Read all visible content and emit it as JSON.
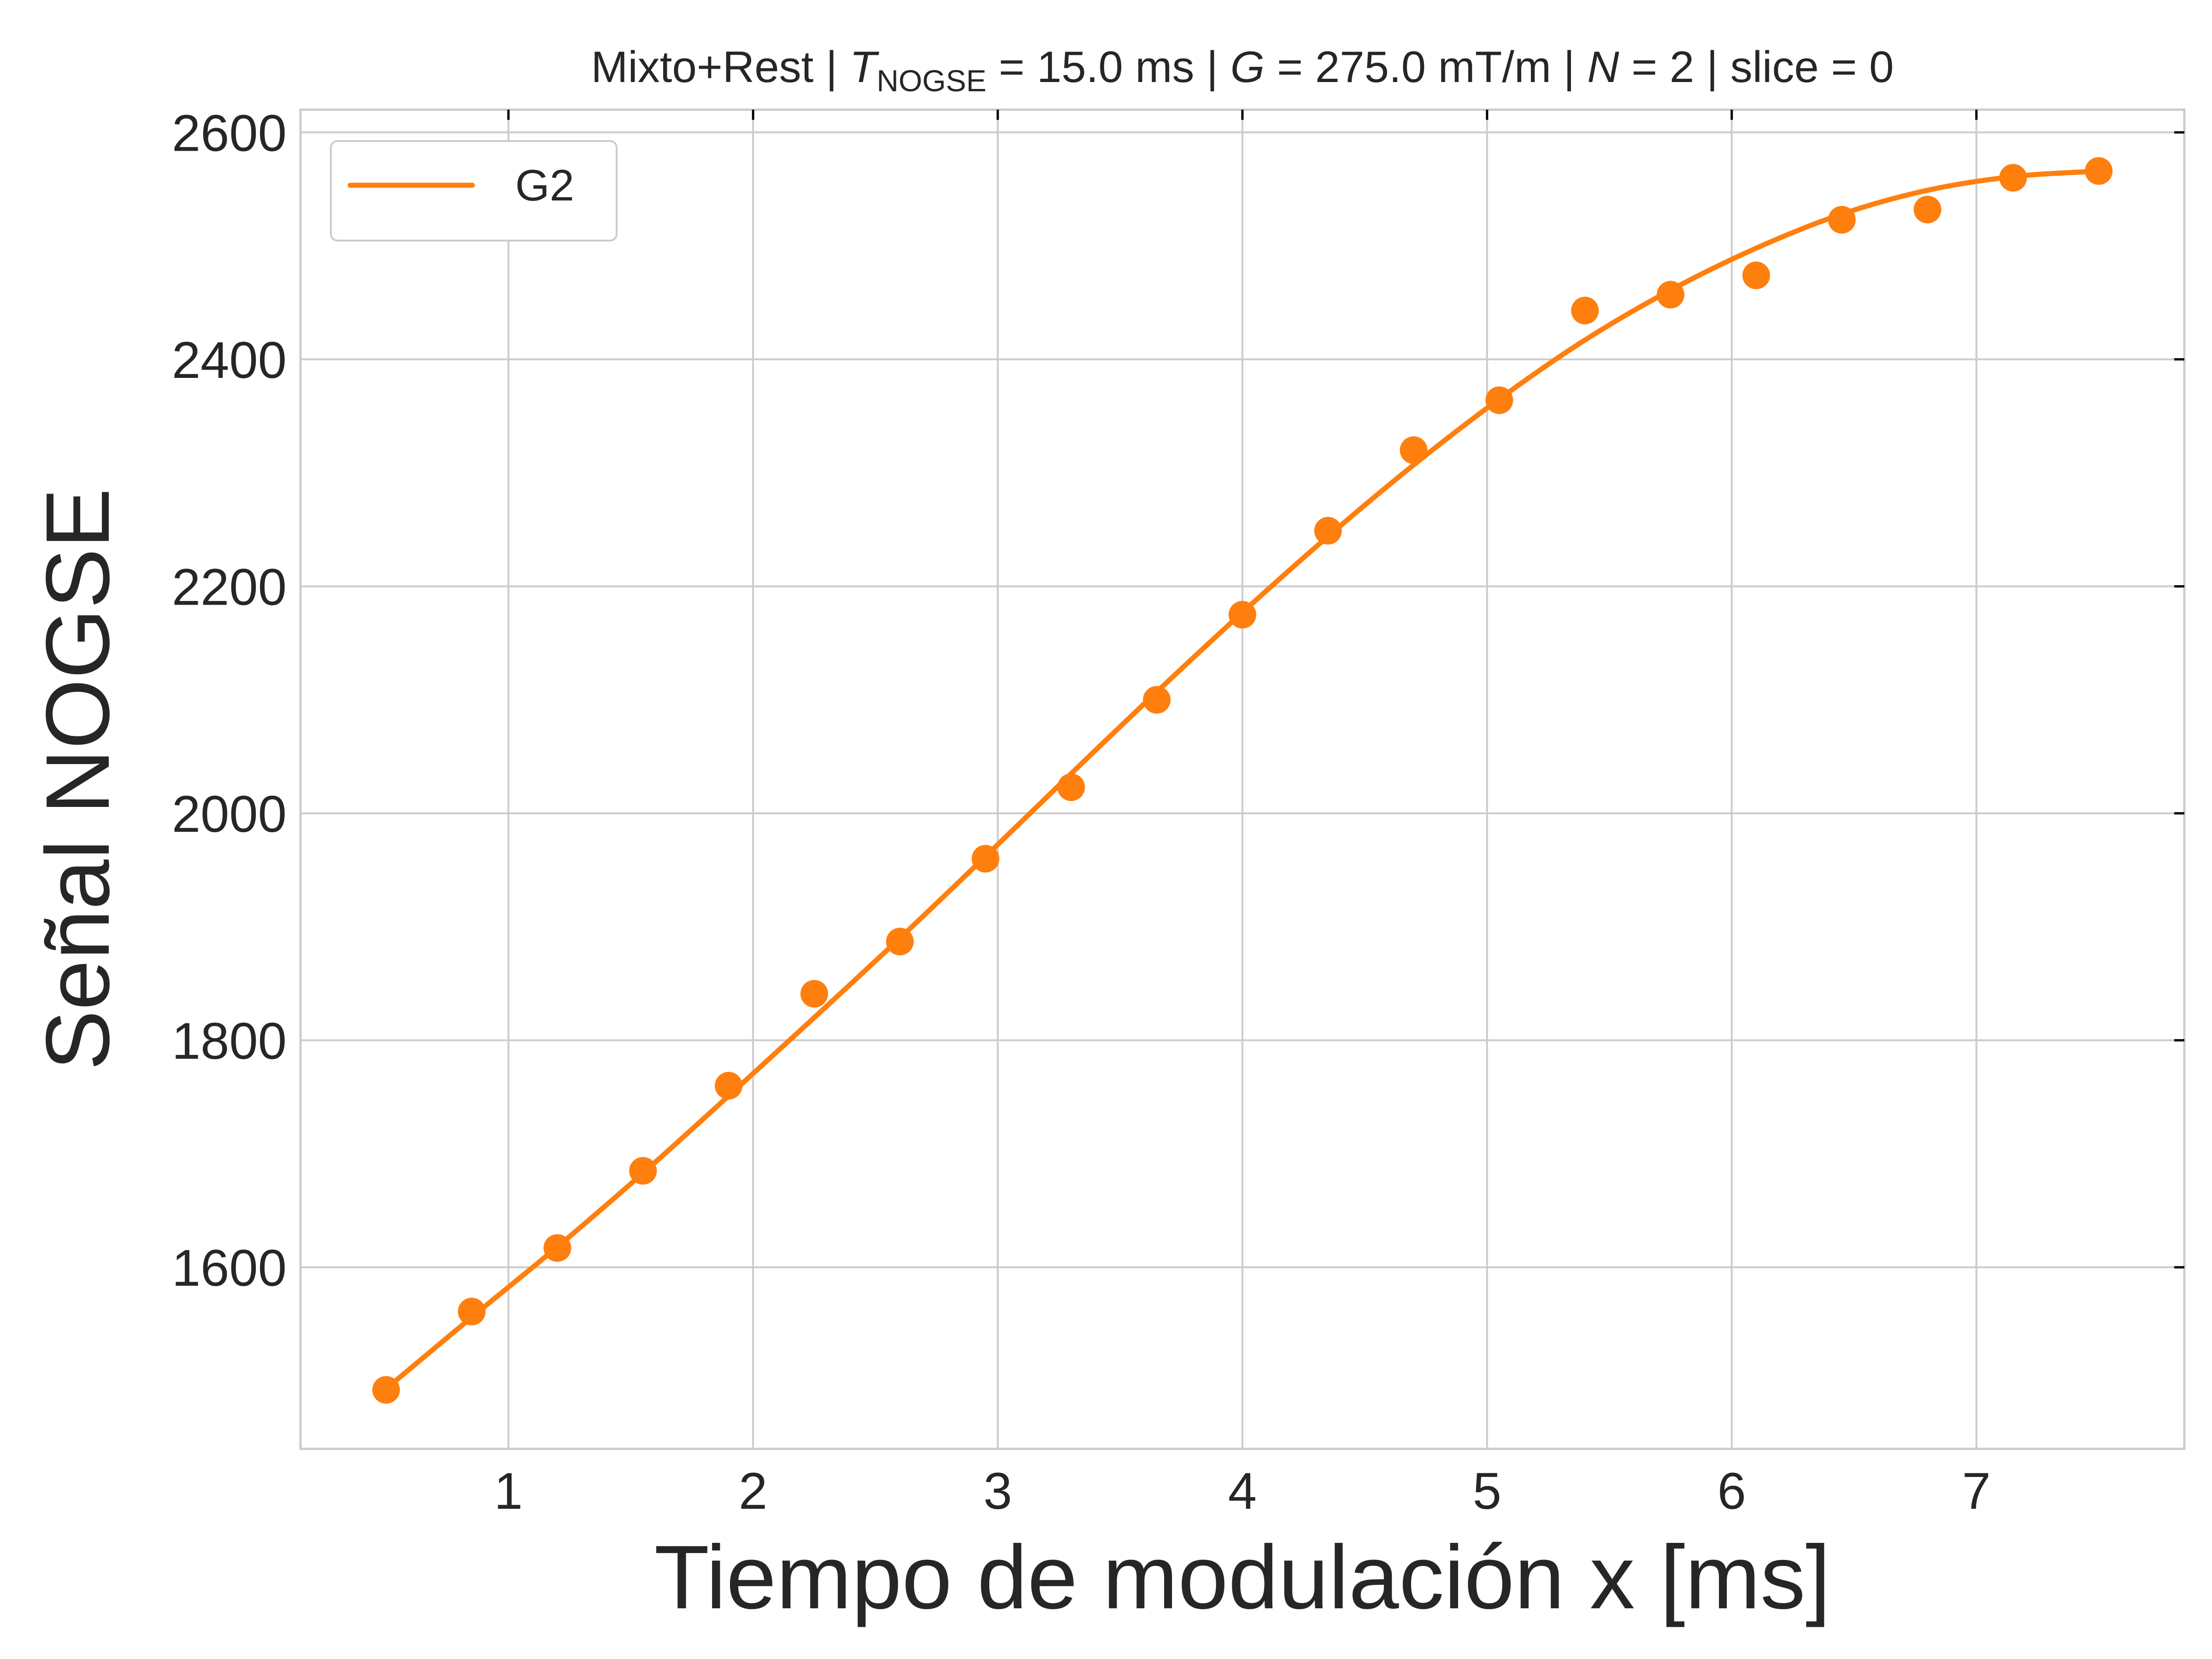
{
  "chart_data": {
    "type": "line",
    "title": {
      "prefix": "Mixto+Rest | ",
      "t_symbol": "T",
      "t_subscript": "NOGSE",
      "t_value": " = 15.0 ms | ",
      "g_symbol": "G",
      "g_value": " = 275.0 mT/m | ",
      "n_symbol": "N",
      "n_value": " = 2 | slice = 0"
    },
    "xlabel": "Tiempo de modulación x [ms]",
    "ylabel": "Señal NOGSE",
    "xlim": [
      0.15,
      7.85
    ],
    "ylim": [
      1440,
      2620
    ],
    "xticks": [
      1,
      2,
      3,
      4,
      5,
      6,
      7
    ],
    "yticks": [
      1600,
      1800,
      2000,
      2200,
      2400,
      2600
    ],
    "grid": true,
    "legend": {
      "position": "top-left",
      "entries": [
        {
          "label": "G2",
          "color": "#ff7f0e"
        }
      ]
    },
    "color": "#ff7f0e",
    "series": [
      {
        "name": "G2",
        "style": "markers",
        "x": [
          0.5,
          0.85,
          1.2,
          1.55,
          1.9,
          2.25,
          2.6,
          2.95,
          3.3,
          3.65,
          4.0,
          4.35,
          4.7,
          5.05,
          5.4,
          5.75,
          6.1,
          6.45,
          6.8,
          7.15,
          7.5
        ],
        "y": [
          1492,
          1561,
          1617,
          1685,
          1760,
          1841,
          1887,
          1960,
          2023,
          2100,
          2175,
          2249,
          2320,
          2364,
          2443,
          2457,
          2474,
          2523,
          2532,
          2560,
          2566
        ]
      },
      {
        "name": "G2",
        "style": "line",
        "x": [
          0.5,
          0.85,
          1.2,
          1.55,
          1.9,
          2.25,
          2.6,
          2.95,
          3.3,
          3.65,
          4.0,
          4.35,
          4.7,
          5.05,
          5.4,
          5.75,
          6.1,
          6.45,
          6.8,
          7.15,
          7.5
        ],
        "y": [
          1493,
          1556,
          1618,
          1683,
          1751,
          1820,
          1890,
          1962,
          2035,
          2107,
          2177,
          2244,
          2307,
          2365,
          2417,
          2461,
          2498,
          2528,
          2549,
          2561,
          2566
        ]
      }
    ]
  }
}
